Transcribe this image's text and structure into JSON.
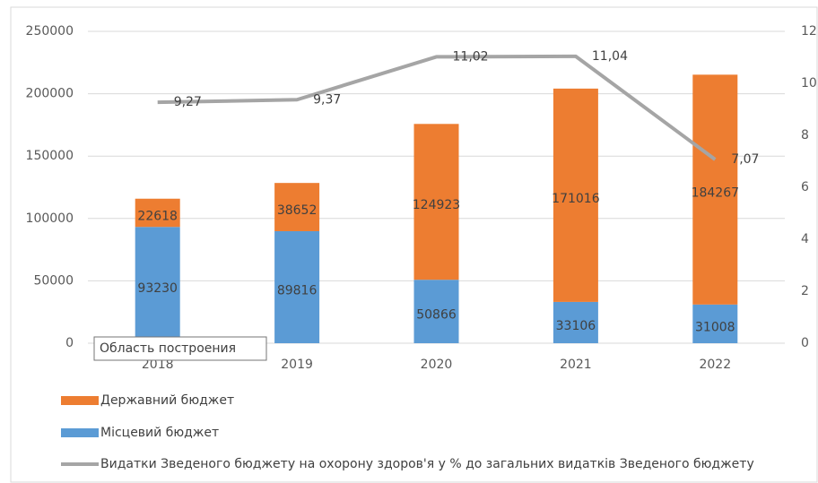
{
  "chart_data": {
    "type": "bar",
    "categories": [
      "2018",
      "2019",
      "2020",
      "2021",
      "2022"
    ],
    "series": [
      {
        "name": "Державний бюджет",
        "color": "#ed7d31",
        "values": [
          22618,
          38652,
          124923,
          171016,
          184267
        ]
      },
      {
        "name": "Місцевий бюджет",
        "color": "#5b9bd5",
        "values": [
          93230,
          89816,
          50866,
          33106,
          31008
        ]
      },
      {
        "name": "Видатки Зведеного бюджету на охорону здоров'я у % до загальних видатків Зведеного бюджету",
        "color": "#a5a5a5",
        "type": "line",
        "axis": "y2",
        "values": [
          9.27,
          9.37,
          11.02,
          11.04,
          7.07
        ],
        "value_labels": [
          "9,27",
          "9,37",
          "11,02",
          "11,04",
          "7,07"
        ]
      }
    ],
    "ylim": [
      0,
      250000
    ],
    "yticks": [
      0,
      50000,
      100000,
      150000,
      200000,
      250000
    ],
    "y2lim": [
      0,
      12
    ],
    "y2ticks": [
      0,
      2,
      4,
      6,
      8,
      10,
      12
    ],
    "tooltip": "Область построения"
  }
}
